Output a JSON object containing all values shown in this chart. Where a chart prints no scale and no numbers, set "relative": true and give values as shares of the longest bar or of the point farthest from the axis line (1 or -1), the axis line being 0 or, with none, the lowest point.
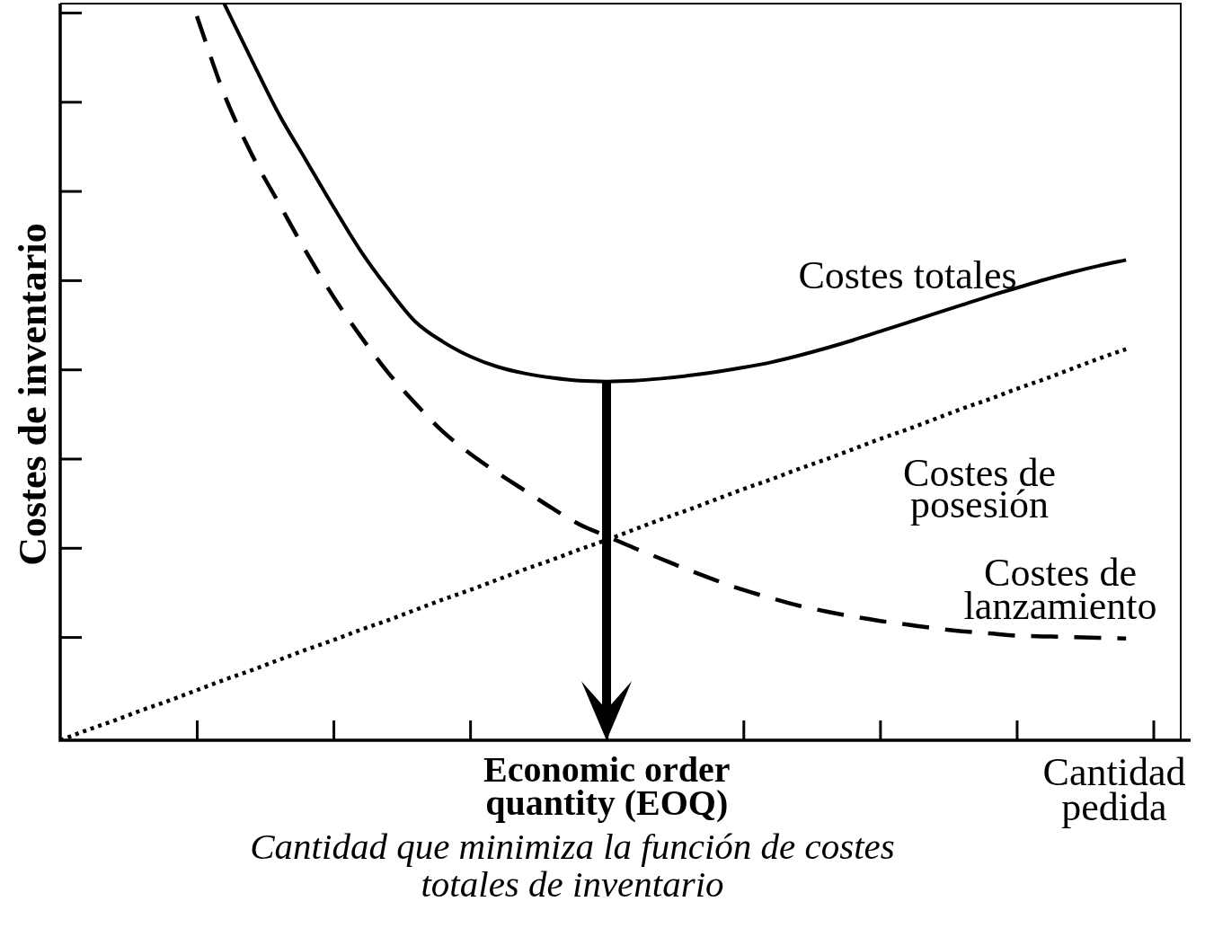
{
  "chart_data": {
    "type": "line",
    "relative": true,
    "xlabel": "Cantidad pedida",
    "ylabel": "Costes de inventario",
    "annotations": [
      "Economic order quantity (EOQ)",
      "Cantidad que minimiza la función de costes totales de inventario"
    ],
    "categories": [
      null,
      null,
      null,
      null,
      null,
      null,
      null,
      null,
      null,
      null,
      null,
      null,
      null,
      null,
      null,
      null,
      null,
      null,
      null,
      null,
      null,
      null,
      null,
      null,
      null,
      null,
      null,
      null,
      null,
      null,
      null,
      null,
      null,
      null,
      null,
      null,
      null,
      null,
      null,
      null,
      null,
      null
    ],
    "series": [
      {
        "name": "Costes totales",
        "color": "#000000",
        "line_style": "solid",
        "values": [
          null,
          null,
          null,
          null,
          null,
          null,
          1.0,
          0.924,
          0.85,
          0.787,
          0.724,
          0.664,
          0.613,
          0.568,
          0.541,
          0.521,
          0.507,
          0.498,
          0.492,
          0.488,
          0.487,
          0.488,
          0.491,
          0.495,
          0.5,
          0.506,
          0.513,
          0.522,
          0.532,
          0.543,
          0.555,
          0.567,
          0.579,
          0.591,
          0.603,
          0.614,
          0.625,
          0.635,
          0.644,
          0.652,
          null,
          null
        ]
      },
      {
        "name": "Costes de posesión",
        "color": "#000000",
        "line_style": "dotted",
        "values": [
          0,
          0.014,
          0.027,
          0.041,
          0.054,
          0.068,
          0.082,
          0.095,
          0.109,
          0.123,
          0.136,
          0.15,
          0.163,
          0.177,
          0.191,
          0.204,
          0.218,
          0.232,
          0.245,
          0.259,
          0.272,
          0.286,
          0.3,
          0.313,
          0.327,
          0.341,
          0.354,
          0.368,
          0.381,
          0.395,
          0.409,
          0.422,
          0.436,
          0.45,
          0.463,
          0.477,
          0.49,
          0.504,
          0.518,
          0.531,
          null,
          null
        ]
      },
      {
        "name": "Costes de lanzamiento",
        "color": "#000000",
        "line_style": "dashed",
        "values": [
          null,
          null,
          null,
          null,
          null,
          0.983,
          0.877,
          0.796,
          0.729,
          0.663,
          0.602,
          0.548,
          0.499,
          0.457,
          0.419,
          0.389,
          0.363,
          0.339,
          0.315,
          0.293,
          0.277,
          0.261,
          0.246,
          0.231,
          0.217,
          0.204,
          0.193,
          0.183,
          0.175,
          0.168,
          0.162,
          0.157,
          0.152,
          0.148,
          0.145,
          0.142,
          0.141,
          0.14,
          0.139,
          0.138,
          null,
          null
        ]
      }
    ]
  }
}
